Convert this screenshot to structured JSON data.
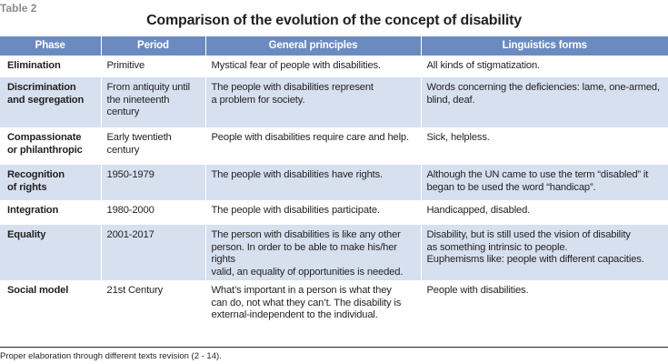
{
  "table_label": "Table 2",
  "title": "Comparison of the evolution of the concept of disability",
  "columns": {
    "phase": "Phase",
    "period": "Period",
    "principles": "General principles",
    "linguistics": "Linguistics forms"
  },
  "rows": [
    {
      "phase": [
        "Elimination"
      ],
      "period": [
        "Primitive"
      ],
      "principles": [
        "Mystical fear of people with disabilities."
      ],
      "linguistics": [
        "All kinds of stigmatization."
      ]
    },
    {
      "phase": [
        "Discrimination",
        "and segregation"
      ],
      "period": [
        "From antiquity until",
        "the nineteenth",
        "century"
      ],
      "principles": [
        "The people with disabilities represent",
        "a problem for society."
      ],
      "linguistics": [
        "Words concerning the deficiencies: lame, one-armed,",
        "blind, deaf."
      ]
    },
    {
      "phase": [
        "Compassionate",
        "or philanthropic"
      ],
      "period": [
        "Early twentieth",
        "century"
      ],
      "principles": [
        "People with disabilities require care and help."
      ],
      "linguistics": [
        "Sick, helpless."
      ]
    },
    {
      "phase": [
        "Recognition",
        "of rights"
      ],
      "period": [
        "1950-1979"
      ],
      "principles": [
        "The people with disabilities have rights."
      ],
      "linguistics": [
        "Although the UN came to use the term “disabled” it",
        "began to be used the word  “handicap”."
      ]
    },
    {
      "phase": [
        "Integration"
      ],
      "period": [
        "1980-2000"
      ],
      "principles": [
        "The people with disabilities participate."
      ],
      "linguistics": [
        "Handicapped, disabled."
      ]
    },
    {
      "phase": [
        "Equality"
      ],
      "period": [
        "2001-2017"
      ],
      "principles": [
        "The person with disabilities is like any other",
        "person. In order to be able to make his/her rights",
        "valid, an equality of opportunities is needed."
      ],
      "linguistics": [
        "Disability, but is still used the vision of disability",
        "as something intrinsic to people.",
        "Euphemisms like: people with different capacities."
      ]
    },
    {
      "phase": [
        "Social model"
      ],
      "period": [
        "21st Century"
      ],
      "principles": [
        "What’s important in a person is what they",
        "can do, not what they can’t. The disability is",
        "external-independent to the individual."
      ],
      "linguistics": [
        "People with disabilities."
      ]
    }
  ],
  "footnote": "Proper elaboration through different texts revision (2 - 14).",
  "colors": {
    "header_bg": "#6b8bc0",
    "shade_bg": "#d6e0ef",
    "label_gray": "#8a8c8e"
  }
}
